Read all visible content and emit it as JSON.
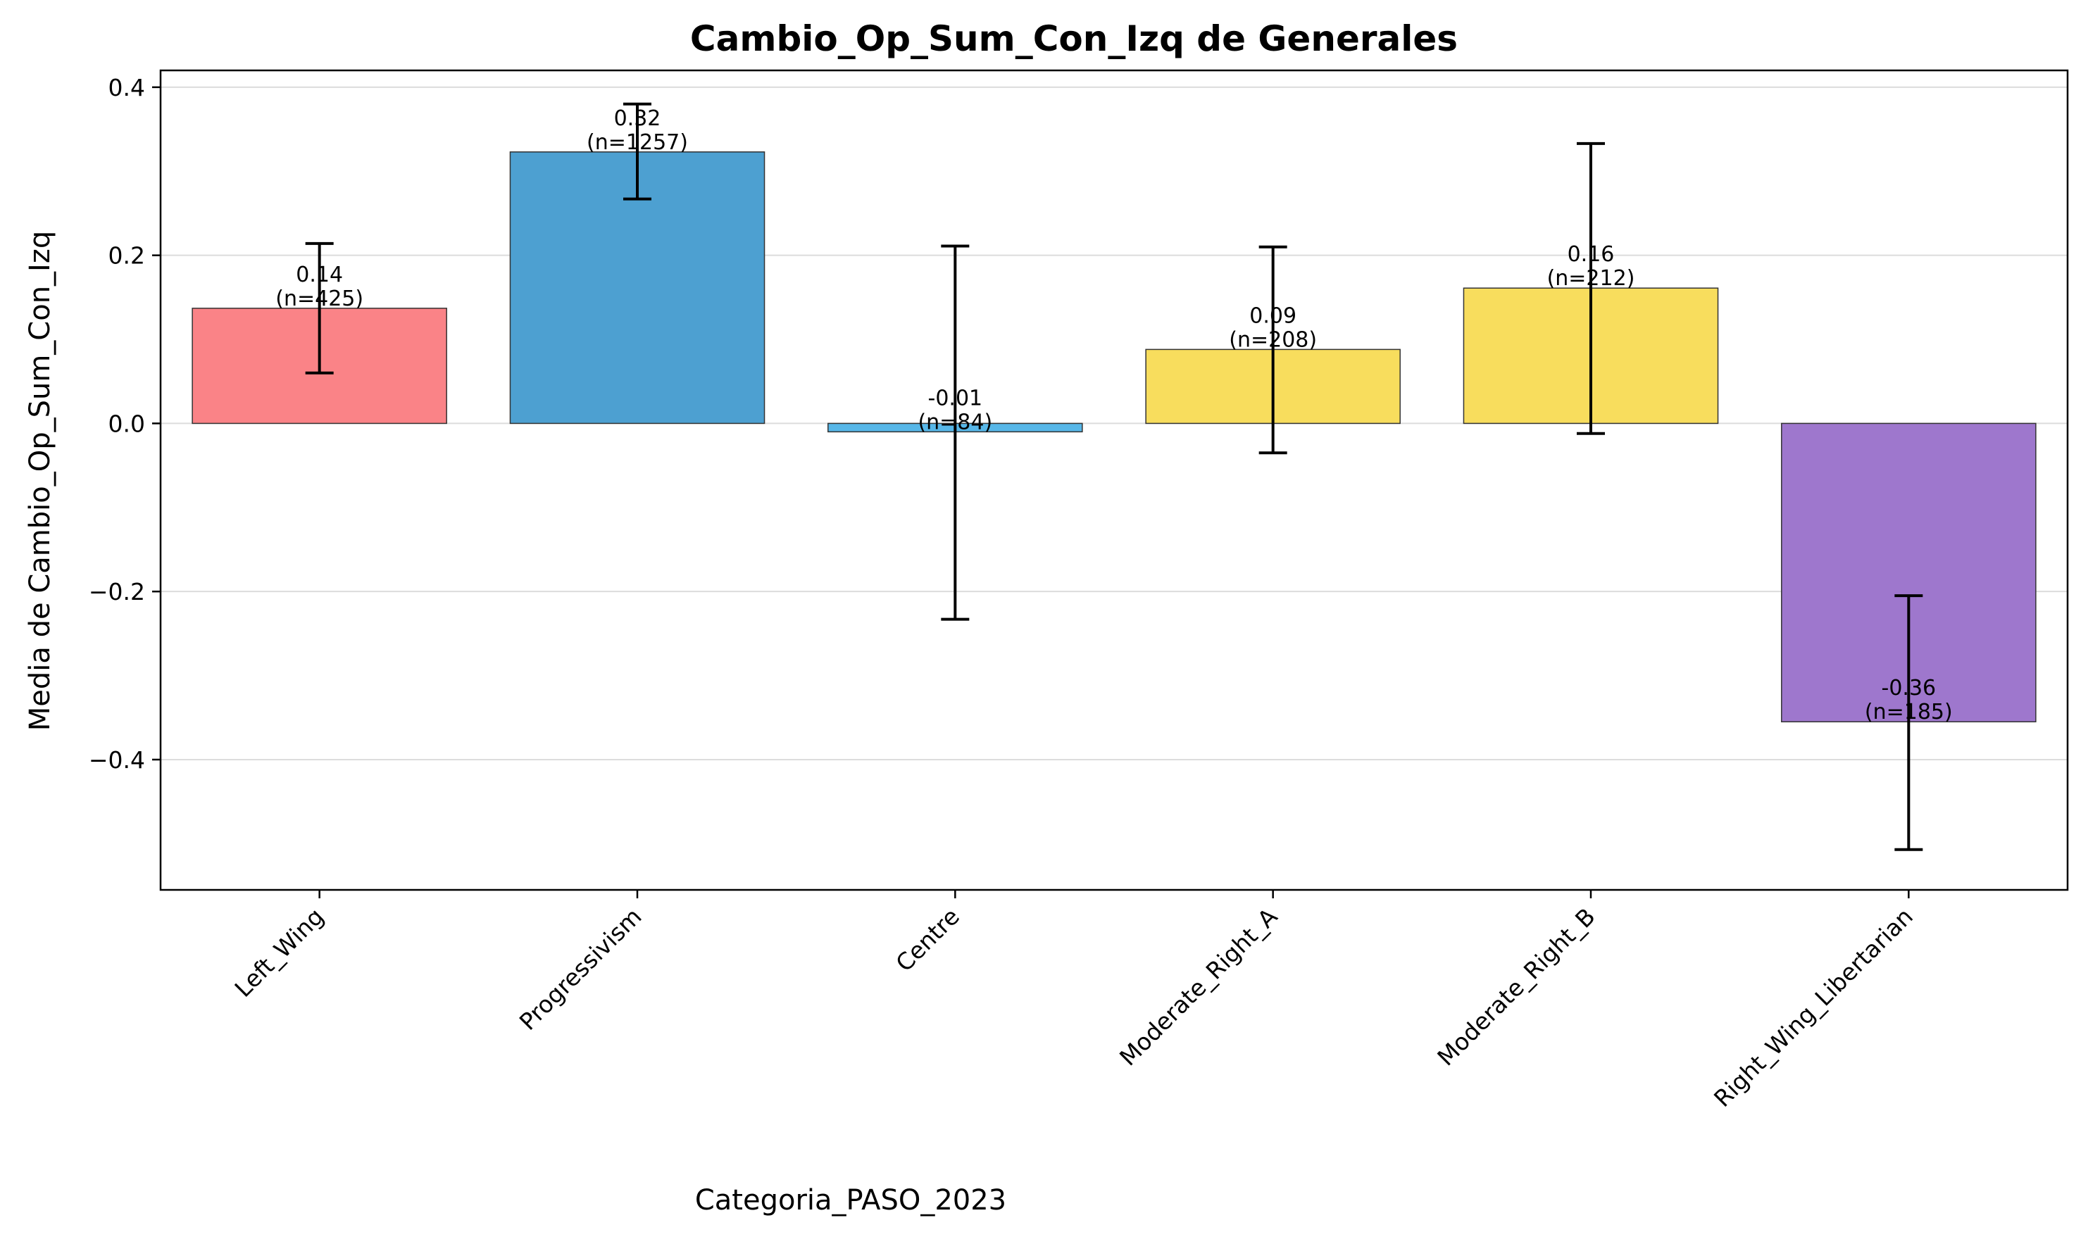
{
  "chart_data": {
    "type": "bar",
    "title": "Cambio_Op_Sum_Con_Izq de Generales",
    "xlabel": "Categoria_PASO_2023",
    "ylabel": "Media de Cambio_Op_Sum_Con_Izq",
    "ylim": [
      -0.555,
      0.42
    ],
    "yticks": [
      0.4,
      0.2,
      0.0,
      -0.2,
      -0.4
    ],
    "ytick_labels": [
      "0.4",
      "0.2",
      "0.0",
      "−0.2",
      "−0.4"
    ],
    "grid": "horizontal",
    "categories": [
      "Left_Wing",
      "Progressivism",
      "Centre",
      "Moderate_Right_A",
      "Moderate_Right_B",
      "Right_Wing_Libertarian"
    ],
    "values": [
      0.137,
      0.323,
      -0.01,
      0.088,
      0.161,
      -0.355
    ],
    "error_low": [
      0.06,
      0.267,
      -0.233,
      -0.035,
      -0.012,
      -0.507
    ],
    "error_high": [
      0.214,
      0.38,
      0.211,
      0.21,
      0.333,
      -0.205
    ],
    "value_labels": [
      "0.14",
      "0.32",
      "-0.01",
      "0.09",
      "0.16",
      "-0.36"
    ],
    "n_labels": [
      "(n=425)",
      "(n=1257)",
      "(n=84)",
      "(n=208)",
      "(n=212)",
      "(n=185)"
    ],
    "colors": [
      "#fa8387",
      "#4da0d1",
      "#57b7e8",
      "#f8dd5d",
      "#f8dd5d",
      "#9e77cd"
    ]
  }
}
